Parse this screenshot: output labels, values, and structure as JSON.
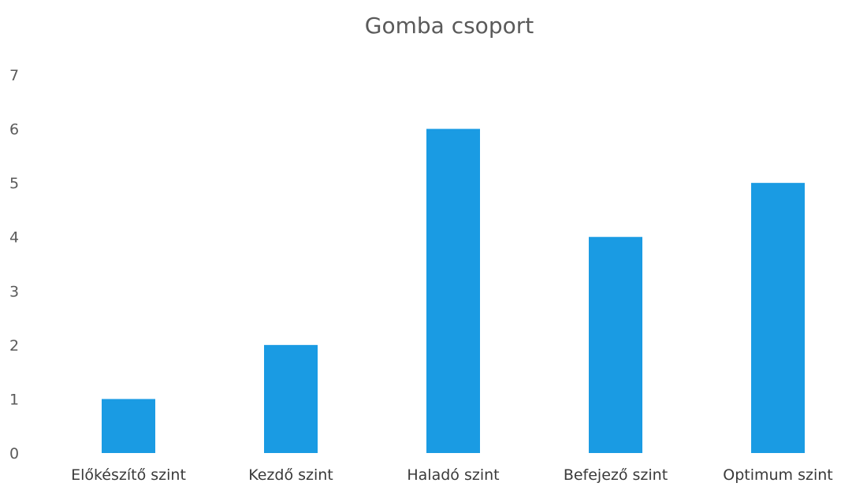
{
  "chart_data": {
    "type": "bar",
    "title": "Gomba csoport",
    "xlabel": "",
    "ylabel": "",
    "categories": [
      "Előkészítő szint",
      "Kezdő szint",
      "Haladó szint",
      "Befejező szint",
      "Optimum szint"
    ],
    "values": [
      1,
      2,
      6,
      4,
      5
    ],
    "ylim": [
      0,
      7
    ],
    "yticks": [
      "0",
      "1",
      "2",
      "3",
      "4",
      "5",
      "6",
      "7"
    ],
    "grid": false,
    "legend": "none",
    "bar_color": "#1a9be3"
  }
}
